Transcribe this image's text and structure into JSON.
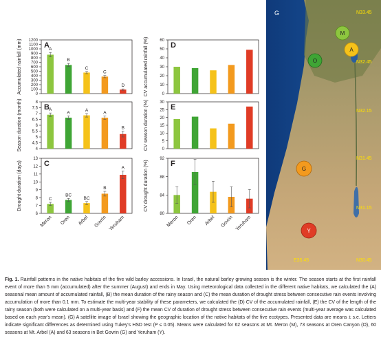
{
  "colors": {
    "Meron": "#8dc63f",
    "Oren": "#3fa535",
    "Arbel": "#f5c21a",
    "Govrin": "#f39a1e",
    "Yeruham": "#e03c26"
  },
  "chart_data": [
    {
      "panel": "A",
      "type": "bar",
      "ylabel": "Accumulated rainfall (mm)",
      "categories": [
        "Meron",
        "Oren",
        "Arbel",
        "Govrin",
        "Yeruham"
      ],
      "values": [
        870,
        640,
        470,
        380,
        90
      ],
      "errors": [
        50,
        35,
        25,
        25,
        15
      ],
      "letters": [
        "A",
        "B",
        "C",
        "C",
        "D"
      ],
      "ylim": [
        0,
        1200
      ],
      "yticks": [
        0,
        100,
        200,
        300,
        400,
        500,
        600,
        700,
        800,
        900,
        1000,
        1100,
        1200
      ]
    },
    {
      "panel": "B",
      "type": "bar",
      "ylabel": "Season duration (month)",
      "categories": [
        "Meron",
        "Oren",
        "Arbel",
        "Govrin",
        "Yeruham"
      ],
      "values": [
        6.9,
        6.65,
        6.85,
        6.65,
        5.25
      ],
      "errors": [
        0.15,
        0.15,
        0.15,
        0.15,
        0.25
      ],
      "letters": [
        "A",
        "A",
        "A",
        "A",
        "B"
      ],
      "ylim": [
        4,
        8
      ],
      "yticks": [
        4,
        4.5,
        5,
        5.5,
        6,
        6.5,
        7,
        7.5,
        8
      ]
    },
    {
      "panel": "C",
      "type": "bar",
      "ylabel": "Drought duration (days)",
      "categories": [
        "Meron",
        "Oren",
        "Arbel",
        "Govrin",
        "Yeruham"
      ],
      "values": [
        7.2,
        7.7,
        7.3,
        8.5,
        10.9
      ],
      "errors": [
        0.2,
        0.2,
        0.2,
        0.3,
        0.5
      ],
      "letters": [
        "C",
        "BC",
        "BC",
        "B",
        "A"
      ],
      "ylim": [
        6,
        13
      ],
      "yticks": [
        6,
        7,
        8,
        9,
        10,
        11,
        12,
        13
      ]
    },
    {
      "panel": "D",
      "type": "bar",
      "ylabel": "CV accumulated rainfall (%)",
      "categories": [
        "Meron",
        "Oren",
        "Arbel",
        "Govrin",
        "Yeruham"
      ],
      "values": [
        30,
        28.5,
        26,
        32,
        49
      ],
      "ylim": [
        0,
        60
      ],
      "yticks": [
        0,
        10,
        20,
        30,
        40,
        50,
        60
      ]
    },
    {
      "panel": "E",
      "type": "bar",
      "ylabel": "CV season duration (%)",
      "categories": [
        "Meron",
        "Oren",
        "Arbel",
        "Govrin",
        "Yeruham"
      ],
      "values": [
        19,
        20.5,
        13,
        16,
        27
      ],
      "ylim": [
        0,
        30
      ],
      "yticks": [
        0,
        5,
        10,
        15,
        20,
        25,
        30
      ]
    },
    {
      "panel": "F",
      "type": "bar",
      "ylabel": "CV drought duration (%)",
      "categories": [
        "Meron",
        "Oren",
        "Arbel",
        "Govrin",
        "Yeruham"
      ],
      "values": [
        84,
        89,
        84.7,
        83.6,
        83.2
      ],
      "errors": [
        1.8,
        2.8,
        2.3,
        2.2,
        2.0
      ],
      "ylim": [
        80,
        92
      ],
      "yticks": [
        80,
        84,
        88,
        92
      ]
    }
  ],
  "map": {
    "panel_label": "G",
    "lat_labels": [
      "N33.45",
      "N32.45",
      "N32.15",
      "N31.45",
      "N31.15",
      "N30.45"
    ],
    "bottom_label": "E35.45",
    "sites": [
      {
        "label": "M",
        "name": "Meron",
        "color": "#8dc63f"
      },
      {
        "label": "A",
        "name": "Arbel",
        "color": "#f5c21a"
      },
      {
        "label": "O",
        "name": "Oren",
        "color": "#3fa535"
      },
      {
        "label": "G",
        "name": "Govrin",
        "color": "#f39a1e"
      },
      {
        "label": "Y",
        "name": "Yeruham",
        "color": "#e03c26"
      }
    ]
  },
  "caption": {
    "fig_label": "Fig. 1.",
    "text": "Rainfall patterns in the native habitats of the five wild barley accessions. In Israel, the natural barley growing season is the winter. The season starts at the first rainfall event of more than 5 mm (accumulated) after the summer (August) and ends in May. Using meteorological data collected in the different native habitats, we calculated the (A) seasonal mean amount of accumulated rainfall, (B) the mean duration of the rainy season and (C) the mean duration of drought stress between consecutive rain events involving accumulation of more than 0.1 mm. To estimate the multi-year stability of these parameters, we calculated the (D) CV of the accumulated rainfall, (E) the CV of the length of the rainy season (both were calculated on a multi-year basis) and (F) the mean CV of duration of drought stress between consecutive rain events (multi-year average was calculated based on each year's mean). (G) A satellite image of Israel showing the geographic location of the native habitats of the five ecotypes. Presented data are means ± s.e. Letters indicate significant differences as determined using Tukey's HSD test (P ≤ 0.05). Means were calculated for 62 seasons at Mt. Meron (M), 73 seasons at Oren Canyon (O), 60 seasons at Mt. Arbel (A) and 63 seasons in Bet Govrin (G) and Yeruham (Y)."
  }
}
